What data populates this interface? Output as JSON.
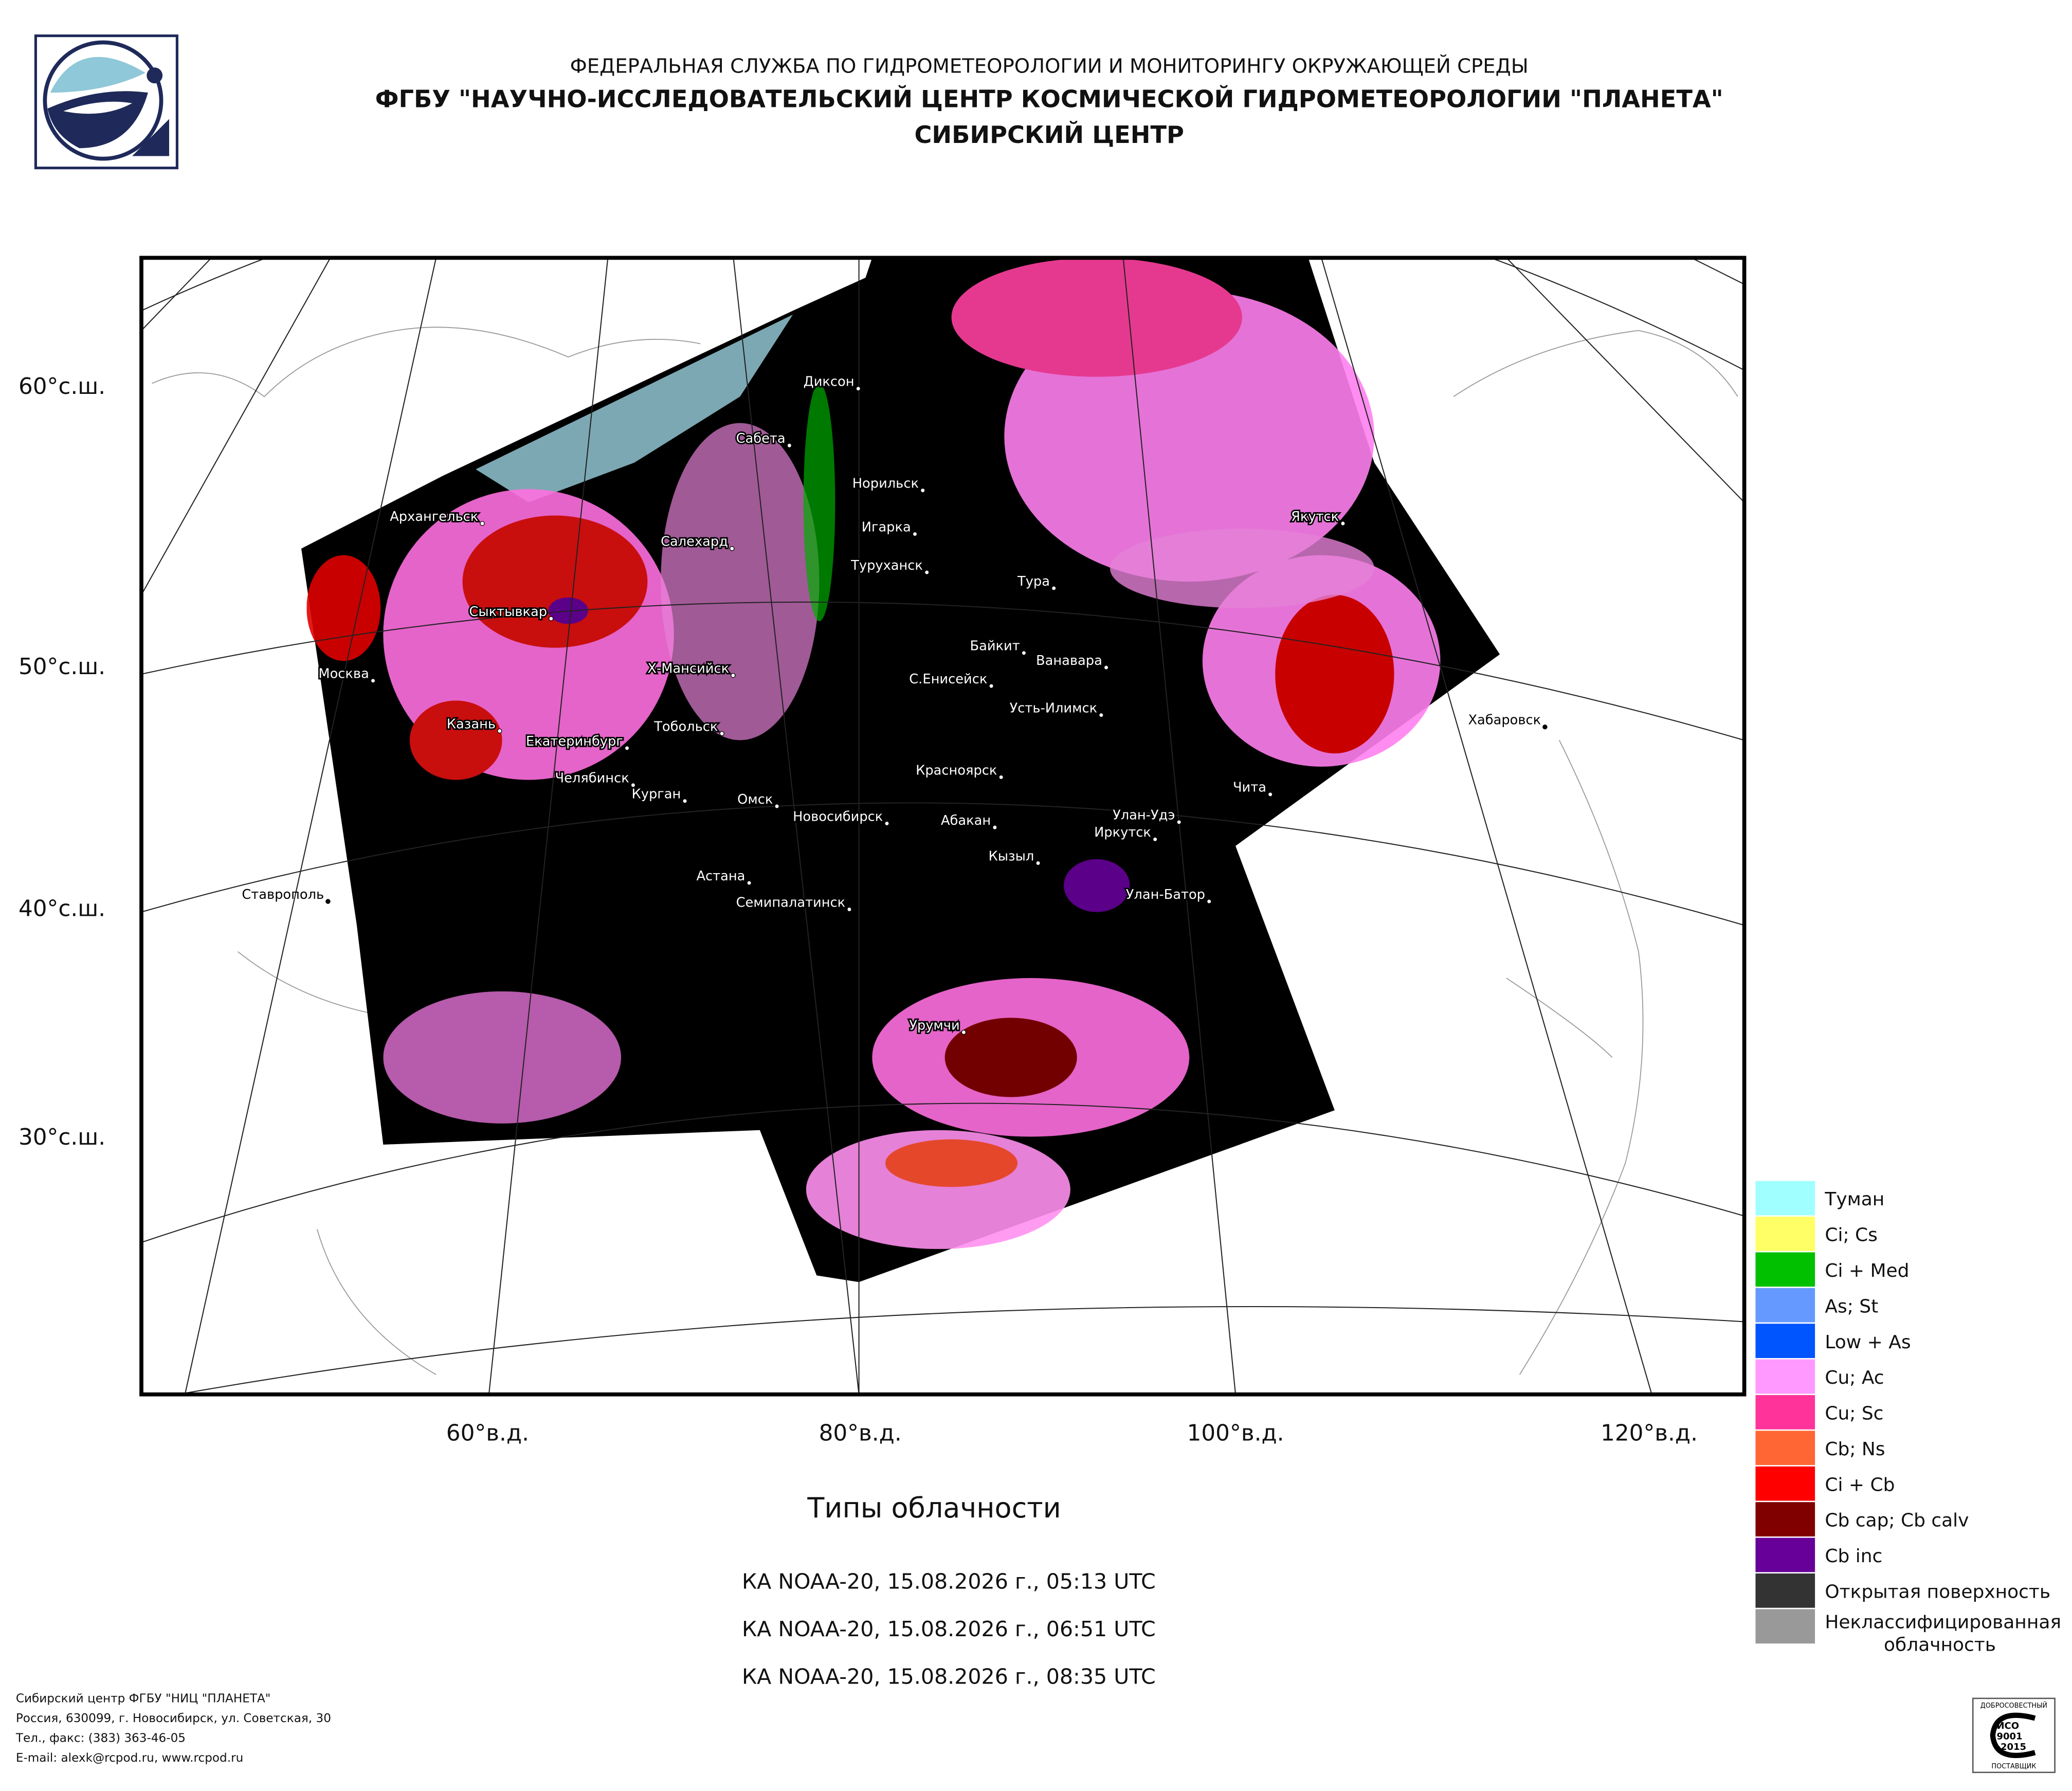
{
  "header": {
    "lines": [
      "ФЕДЕРАЛЬНАЯ СЛУЖБА ПО ГИДРОМЕТЕОРОЛОГИИ И МОНИТОРИНГУ ОКРУЖАЮЩЕЙ СРЕДЫ",
      "ФГБУ \"НАУЧНО-ИССЛЕДОВАТЕЛЬСКИЙ ЦЕНТР КОСМИЧЕСКОЙ ГИДРОМЕТЕОРОЛОГИИ \"ПЛАНЕТА\"",
      "СИБИРСКИЙ ЦЕНТР"
    ]
  },
  "map": {
    "lat_labels": [
      "60°с.ш.",
      "50°с.ш.",
      "40°с.ш.",
      "30°с.ш."
    ],
    "lon_labels": [
      "60°в.д.",
      "80°в.д.",
      "100°в.д.",
      "120°в.д."
    ],
    "cities": [
      "Архангельск",
      "Сыктывкар",
      "Москва",
      "Казань",
      "Екатеринбург",
      "Челябинск",
      "Курган",
      "Тобольск",
      "Х-Мансийск",
      "Салехард",
      "Сабета",
      "Диксон",
      "Норильск",
      "Игарка",
      "Туруханск",
      "Тура",
      "Байкит",
      "Ванавара",
      "С.Енисейск",
      "Усть-Илимск",
      "Красноярск",
      "Омск",
      "Новосибирск",
      "Абакан",
      "Кызыл",
      "Иркутск",
      "Улан-Удэ",
      "Чита",
      "Улан-Батор",
      "Астана",
      "Семипалатинск",
      "Урумчи",
      "Якутск",
      "Хабаровск",
      "Ставрополь"
    ]
  },
  "legend": {
    "items": [
      {
        "label": "Туман",
        "color": "#a0ffff"
      },
      {
        "label": "Ci; Cs",
        "color": "#ffff66"
      },
      {
        "label": "Ci + Med",
        "color": "#00c000"
      },
      {
        "label": "As; St",
        "color": "#6699ff"
      },
      {
        "label": "Low + As",
        "color": "#0055ff"
      },
      {
        "label": "Cu; Ac",
        "color": "#ff99ff"
      },
      {
        "label": "Cu; Sc",
        "color": "#ff3399"
      },
      {
        "label": "Cb; Ns",
        "color": "#ff6633"
      },
      {
        "label": "Ci + Cb",
        "color": "#ff0000"
      },
      {
        "label": "Cb cap; Cb calv",
        "color": "#800000"
      },
      {
        "label": "Cb inc",
        "color": "#660099"
      },
      {
        "label": "Открытая поверхность",
        "color": "#333333"
      },
      {
        "label": [
          "Неклассифицированная",
          "облачность"
        ],
        "color": "#999999"
      }
    ]
  },
  "title": "Типы облачности",
  "passes": [
    "КА NOAA-20, 15.08.2026 г., 05:13 UTC",
    "КА NOAA-20, 15.08.2026 г., 06:51 UTC",
    "КА NOAA-20, 15.08.2026 г., 08:35 UTC"
  ],
  "footer": {
    "lines": [
      "Сибирский центр ФГБУ \"НИЦ \"ПЛАНЕТА\"",
      "Россия, 630099, г. Новосибирск, ул. Советская, 30",
      "Тел., факс: (383) 363-46-05",
      "E-mail: alexk@rcpod.ru, www.rcpod.ru"
    ]
  },
  "badge": {
    "top": "ДОБРОСОВЕСТНЫЙ",
    "lines": [
      "ИСО",
      "9001",
      "-2015"
    ],
    "bottom": "ПОСТАВЩИК"
  }
}
